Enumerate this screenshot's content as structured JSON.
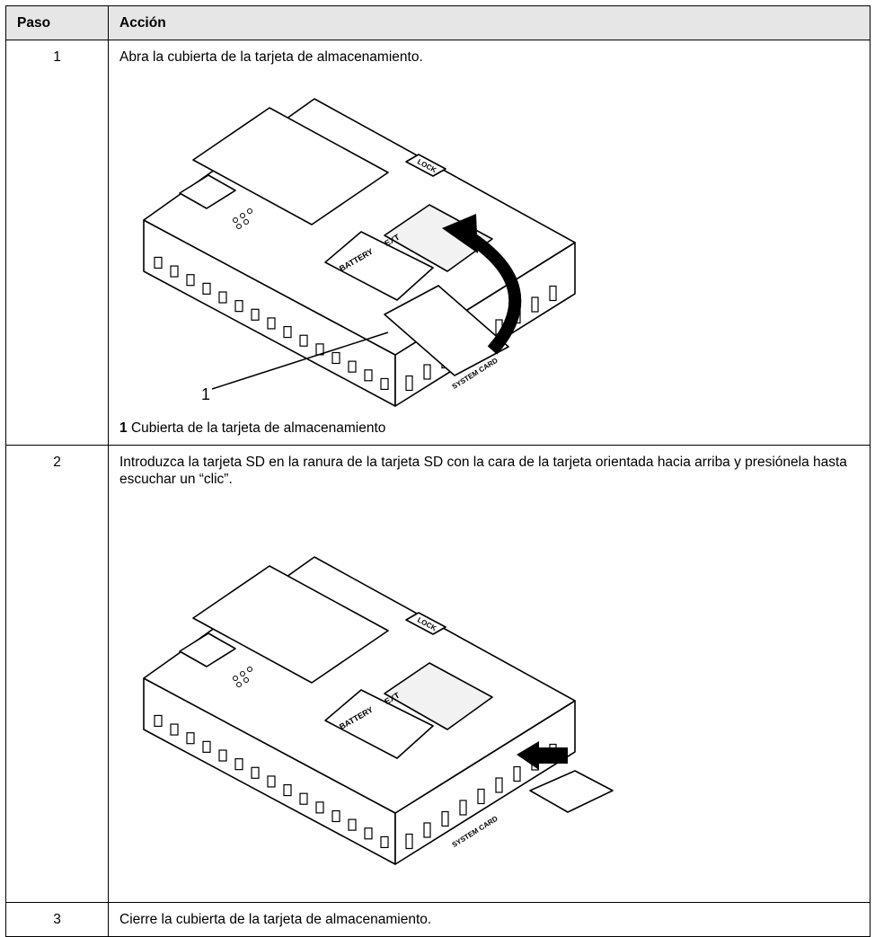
{
  "table": {
    "header": [
      "Paso",
      "Acción"
    ],
    "rows": [
      {
        "step": "1",
        "action": "Abra la cubierta de la tarjeta de almacenamiento.",
        "figure": {
          "labels": [
            "LOCK",
            "BATTERY",
            "EXT",
            "SYSTEM CARD"
          ],
          "callout": "1"
        },
        "caption": {
          "number": "1",
          "text": "Cubierta de la tarjeta de almacenamiento"
        }
      },
      {
        "step": "2",
        "action": "Introduzca la tarjeta SD en la ranura de la tarjeta SD con la cara de la tarjeta orientada hacia arriba y presiónela hasta escuchar un “clic”.",
        "figure": {
          "labels": [
            "LOCK",
            "BATTERY",
            "EXT",
            "SYSTEM CARD"
          ]
        }
      },
      {
        "step": "3",
        "action": "Cierre la cubierta de la tarjeta de almacenamiento."
      }
    ]
  }
}
